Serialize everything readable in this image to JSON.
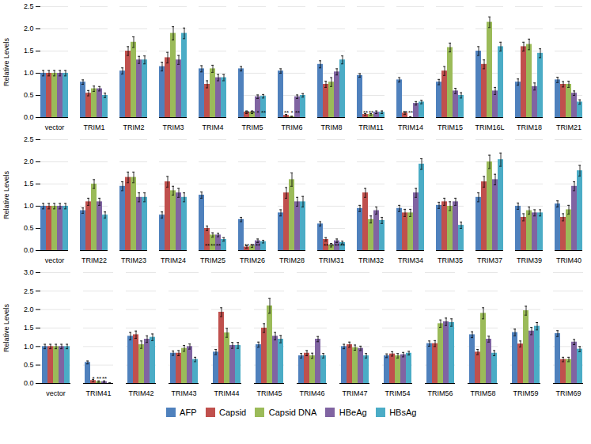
{
  "chart_data": [
    {
      "type": "bar",
      "categories": [
        "vector",
        "TRIM1",
        "TRIM2",
        "TRIM3",
        "TRIM4",
        "TRIM5",
        "TRIM6",
        "TRIM8",
        "TRIM11",
        "TRIM14",
        "TRIM15",
        "TRIM16L",
        "TRIM18",
        "TRIM21"
      ],
      "series": [
        {
          "name": "AFP",
          "color": "#4f81bd",
          "values": [
            1.0,
            0.8,
            1.05,
            1.15,
            1.1,
            1.1,
            1.05,
            1.2,
            0.95,
            0.85,
            0.8,
            1.5,
            0.8,
            0.85
          ],
          "errors": [
            0.06,
            0.05,
            0.07,
            0.1,
            0.07,
            0.05,
            0.05,
            0.08,
            0.04,
            0.05,
            0.06,
            0.1,
            0.07,
            0.06
          ]
        },
        {
          "name": "Capsid",
          "color": "#c0504d",
          "values": [
            1.0,
            0.55,
            1.5,
            1.35,
            0.75,
            0.12,
            0.05,
            0.75,
            0.07,
            0.1,
            1.05,
            1.2,
            1.6,
            0.75
          ],
          "errors": [
            0.06,
            0.06,
            0.1,
            0.12,
            0.08,
            0.03,
            0.02,
            0.07,
            0.02,
            0.03,
            0.1,
            0.1,
            0.1,
            0.06
          ]
        },
        {
          "name": "Capsid DNA",
          "color": "#9bbb59",
          "values": [
            1.0,
            0.65,
            1.7,
            1.9,
            1.1,
            0.12,
            0.02,
            0.8,
            0.07,
            0.0,
            1.58,
            2.15,
            1.65,
            0.75
          ],
          "errors": [
            0.06,
            0.06,
            0.12,
            0.15,
            0.08,
            0.03,
            0.01,
            0.1,
            0.02,
            0.02,
            0.1,
            0.12,
            0.12,
            0.07
          ]
        },
        {
          "name": "HBeAg",
          "color": "#8064a2",
          "values": [
            1.0,
            0.65,
            1.3,
            1.3,
            0.9,
            0.47,
            0.47,
            1.03,
            0.12,
            0.32,
            0.6,
            0.6,
            0.7,
            0.55
          ],
          "errors": [
            0.06,
            0.05,
            0.08,
            0.1,
            0.07,
            0.04,
            0.04,
            0.07,
            0.03,
            0.04,
            0.06,
            0.08,
            0.08,
            0.05
          ]
        },
        {
          "name": "HBsAg",
          "color": "#4bacc6",
          "values": [
            1.0,
            0.5,
            1.3,
            1.9,
            0.9,
            0.48,
            0.5,
            1.3,
            0.12,
            0.35,
            0.5,
            1.6,
            1.45,
            0.35
          ],
          "errors": [
            0.06,
            0.05,
            0.09,
            0.12,
            0.07,
            0.04,
            0.04,
            0.09,
            0.03,
            0.04,
            0.06,
            0.1,
            0.1,
            0.05
          ]
        }
      ],
      "annotations": [
        {
          "category": "TRIM5",
          "series": "Capsid",
          "text": "**"
        },
        {
          "category": "TRIM5",
          "series": "Capsid DNA",
          "text": "**"
        },
        {
          "category": "TRIM5",
          "series": "HBeAg",
          "text": "*"
        },
        {
          "category": "TRIM5",
          "series": "HBsAg",
          "text": "**"
        },
        {
          "category": "TRIM6",
          "series": "Capsid",
          "text": "**"
        },
        {
          "category": "TRIM6",
          "series": "Capsid DNA",
          "text": "*"
        },
        {
          "category": "TRIM6",
          "series": "HBeAg",
          "text": "**"
        },
        {
          "category": "TRIM11",
          "series": "Capsid",
          "text": "**"
        },
        {
          "category": "TRIM11",
          "series": "Capsid DNA",
          "text": "**"
        },
        {
          "category": "TRIM14",
          "series": "Capsid",
          "text": "**"
        },
        {
          "category": "TRIM14",
          "series": "Capsid DNA",
          "text": "**"
        }
      ],
      "ylabel": "Relative Levels",
      "ylim": [
        0,
        2.5
      ],
      "yticks": [
        {
          "value": 0,
          "label": "0.0"
        },
        0.5,
        {
          "value": 1,
          "label": "1.0"
        },
        1.5,
        {
          "value": 2,
          "label": "2.0"
        },
        2.5
      ],
      "grid": true
    },
    {
      "type": "bar",
      "categories": [
        "vector",
        "TRIM22",
        "TRIM23",
        "TRIM24",
        "TRIM25",
        "TRIM26",
        "TRIM28",
        "TRIM31",
        "TRIM32",
        "TRIM34",
        "TRIM35",
        "TRIM37",
        "TRIM39",
        "TRIM40"
      ],
      "series": [
        {
          "name": "AFP",
          "color": "#4f81bd",
          "values": [
            1.0,
            0.9,
            1.45,
            0.8,
            1.25,
            0.7,
            0.85,
            0.6,
            0.95,
            0.95,
            1.02,
            1.2,
            1.0,
            1.05
          ],
          "errors": [
            0.06,
            0.06,
            0.1,
            0.07,
            0.07,
            0.05,
            0.07,
            0.05,
            0.07,
            0.07,
            0.07,
            0.1,
            0.07,
            0.07
          ]
        },
        {
          "name": "Capsid",
          "color": "#c0504d",
          "values": [
            1.0,
            1.1,
            1.65,
            1.55,
            0.5,
            0.08,
            1.3,
            0.25,
            1.3,
            0.85,
            1.1,
            1.55,
            0.75,
            0.75
          ],
          "errors": [
            0.06,
            0.08,
            0.12,
            0.12,
            0.05,
            0.03,
            0.12,
            0.04,
            0.1,
            0.08,
            0.08,
            0.12,
            0.08,
            0.08
          ]
        },
        {
          "name": "Capsid DNA",
          "color": "#9bbb59",
          "values": [
            1.0,
            1.5,
            1.65,
            1.35,
            0.35,
            0.1,
            1.6,
            0.12,
            0.7,
            0.85,
            1.0,
            2.0,
            0.9,
            0.92
          ],
          "errors": [
            0.06,
            0.1,
            0.12,
            0.1,
            0.05,
            0.03,
            0.15,
            0.04,
            0.08,
            0.08,
            0.1,
            0.15,
            0.08,
            0.1
          ]
        },
        {
          "name": "HBeAg",
          "color": "#8064a2",
          "values": [
            1.0,
            1.1,
            1.2,
            1.3,
            0.35,
            0.22,
            1.1,
            0.22,
            0.9,
            1.3,
            1.1,
            1.6,
            0.85,
            1.45
          ],
          "errors": [
            0.06,
            0.08,
            0.1,
            0.1,
            0.04,
            0.04,
            0.1,
            0.04,
            0.08,
            0.1,
            0.08,
            0.12,
            0.07,
            0.1
          ]
        },
        {
          "name": "HBsAg",
          "color": "#4bacc6",
          "values": [
            1.0,
            0.8,
            1.2,
            1.2,
            0.25,
            0.2,
            1.1,
            0.18,
            0.68,
            1.95,
            0.57,
            2.05,
            0.85,
            1.8
          ],
          "errors": [
            0.06,
            0.07,
            0.1,
            0.1,
            0.04,
            0.03,
            0.12,
            0.03,
            0.07,
            0.12,
            0.07,
            0.15,
            0.07,
            0.12
          ]
        }
      ],
      "annotations": [
        {
          "category": "TRIM25",
          "series": "Capsid",
          "text": "**"
        },
        {
          "category": "TRIM25",
          "series": "Capsid DNA",
          "text": "**"
        },
        {
          "category": "TRIM25",
          "series": "HBeAg",
          "text": "**"
        },
        {
          "category": "TRIM26",
          "series": "Capsid",
          "text": "**"
        },
        {
          "category": "TRIM26",
          "series": "Capsid DNA",
          "text": "**"
        },
        {
          "category": "TRIM26",
          "series": "HBeAg",
          "text": "**"
        },
        {
          "category": "TRIM31",
          "series": "Capsid",
          "text": "**"
        },
        {
          "category": "TRIM31",
          "series": "Capsid DNA",
          "text": "**"
        },
        {
          "category": "TRIM31",
          "series": "HBeAg",
          "text": "**"
        },
        {
          "category": "TRIM31",
          "series": "HBsAg",
          "text": "**"
        }
      ],
      "ylabel": "Relative Levels",
      "ylim": [
        0,
        2.5
      ],
      "yticks": [
        {
          "value": 0,
          "label": "0.0"
        },
        0.5,
        {
          "value": 1,
          "label": "1.0"
        },
        1.5,
        {
          "value": 2,
          "label": "2.0"
        },
        2.5
      ],
      "grid": true
    },
    {
      "type": "bar",
      "categories": [
        "vector",
        "TRIM41",
        "TRIM42",
        "TRIM43",
        "TRIM44",
        "TRIM45",
        "TRIM46",
        "TRIM47",
        "TRIM54",
        "TRIM56",
        "TRIM58",
        "TRIM59",
        "TRIM69"
      ],
      "series": [
        {
          "name": "AFP",
          "color": "#4f81bd",
          "values": [
            1.0,
            0.57,
            1.28,
            0.82,
            0.85,
            1.05,
            0.75,
            1.0,
            0.75,
            1.08,
            1.32,
            1.38,
            1.35
          ],
          "errors": [
            0.06,
            0.04,
            0.1,
            0.06,
            0.07,
            0.07,
            0.06,
            0.06,
            0.05,
            0.07,
            0.08,
            0.09,
            0.08
          ]
        },
        {
          "name": "Capsid",
          "color": "#c0504d",
          "values": [
            1.0,
            0.08,
            1.32,
            0.82,
            1.93,
            1.5,
            0.82,
            1.05,
            0.8,
            1.08,
            0.85,
            1.07,
            0.65
          ],
          "errors": [
            0.06,
            0.03,
            0.1,
            0.07,
            0.12,
            0.12,
            0.07,
            0.07,
            0.06,
            0.08,
            0.07,
            0.08,
            0.06
          ]
        },
        {
          "name": "Capsid DNA",
          "color": "#9bbb59",
          "values": [
            1.0,
            0.05,
            1.05,
            0.95,
            1.37,
            2.1,
            0.75,
            0.97,
            0.75,
            1.62,
            1.9,
            1.97,
            0.65
          ],
          "errors": [
            0.06,
            0.02,
            0.1,
            0.08,
            0.12,
            0.2,
            0.07,
            0.07,
            0.06,
            0.1,
            0.15,
            0.12,
            0.06
          ]
        },
        {
          "name": "HBeAg",
          "color": "#8064a2",
          "values": [
            1.0,
            0.05,
            1.2,
            1.0,
            1.03,
            1.28,
            1.2,
            0.95,
            0.78,
            1.67,
            1.2,
            1.42,
            1.12
          ],
          "errors": [
            0.06,
            0.02,
            0.09,
            0.07,
            0.08,
            0.1,
            0.07,
            0.06,
            0.06,
            0.1,
            0.08,
            0.1,
            0.07
          ]
        },
        {
          "name": "HBsAg",
          "color": "#4bacc6",
          "values": [
            1.0,
            0.0,
            1.25,
            0.65,
            1.03,
            1.2,
            0.75,
            0.75,
            0.82,
            1.65,
            0.82,
            1.55,
            0.93
          ],
          "errors": [
            0.06,
            0.02,
            0.09,
            0.06,
            0.08,
            0.1,
            0.06,
            0.06,
            0.05,
            0.1,
            0.07,
            0.1,
            0.07
          ]
        }
      ],
      "annotations": [
        {
          "category": "TRIM41",
          "series": "Capsid",
          "text": "*"
        },
        {
          "category": "TRIM41",
          "series": "Capsid DNA",
          "text": "**"
        },
        {
          "category": "TRIM41",
          "series": "HBeAg",
          "text": "**"
        }
      ],
      "ylabel": "Relative Levels",
      "ylim": [
        0,
        3.0
      ],
      "yticks": [
        {
          "value": 0,
          "label": "0.0"
        },
        0.5,
        {
          "value": 1,
          "label": "1.0"
        },
        1.5,
        {
          "value": 2,
          "label": "2.0"
        },
        2.5,
        {
          "value": 3,
          "label": "3.0"
        }
      ],
      "grid": true,
      "legend": "bottom"
    }
  ]
}
